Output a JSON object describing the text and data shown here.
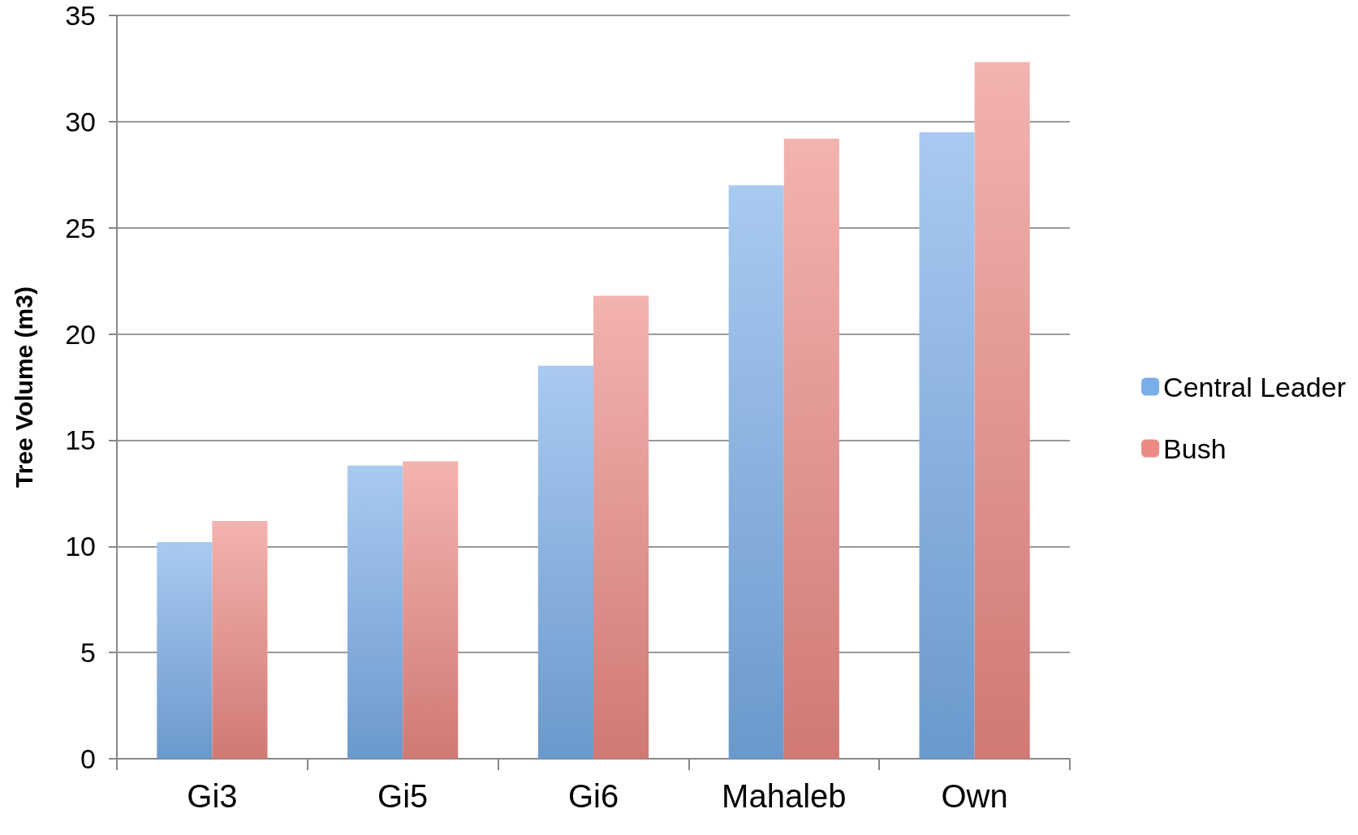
{
  "chart_data": {
    "type": "bar",
    "ylabel": "Tree Volume (m3)",
    "categories": [
      "Gi3",
      "Gi5",
      "Gi6",
      "Mahaleb",
      "Own"
    ],
    "series": [
      {
        "name": "Central Leader",
        "color": "#7aaee8",
        "values": [
          10.2,
          13.8,
          18.5,
          27.0,
          29.5
        ]
      },
      {
        "name": "Bush",
        "color": "#ec8a85",
        "values": [
          11.2,
          14.0,
          21.8,
          29.2,
          32.8
        ]
      }
    ],
    "ylim": [
      0,
      35
    ],
    "yticks": [
      0,
      5,
      10,
      15,
      20,
      25,
      30,
      35
    ],
    "grid": "y",
    "legend": "right"
  }
}
